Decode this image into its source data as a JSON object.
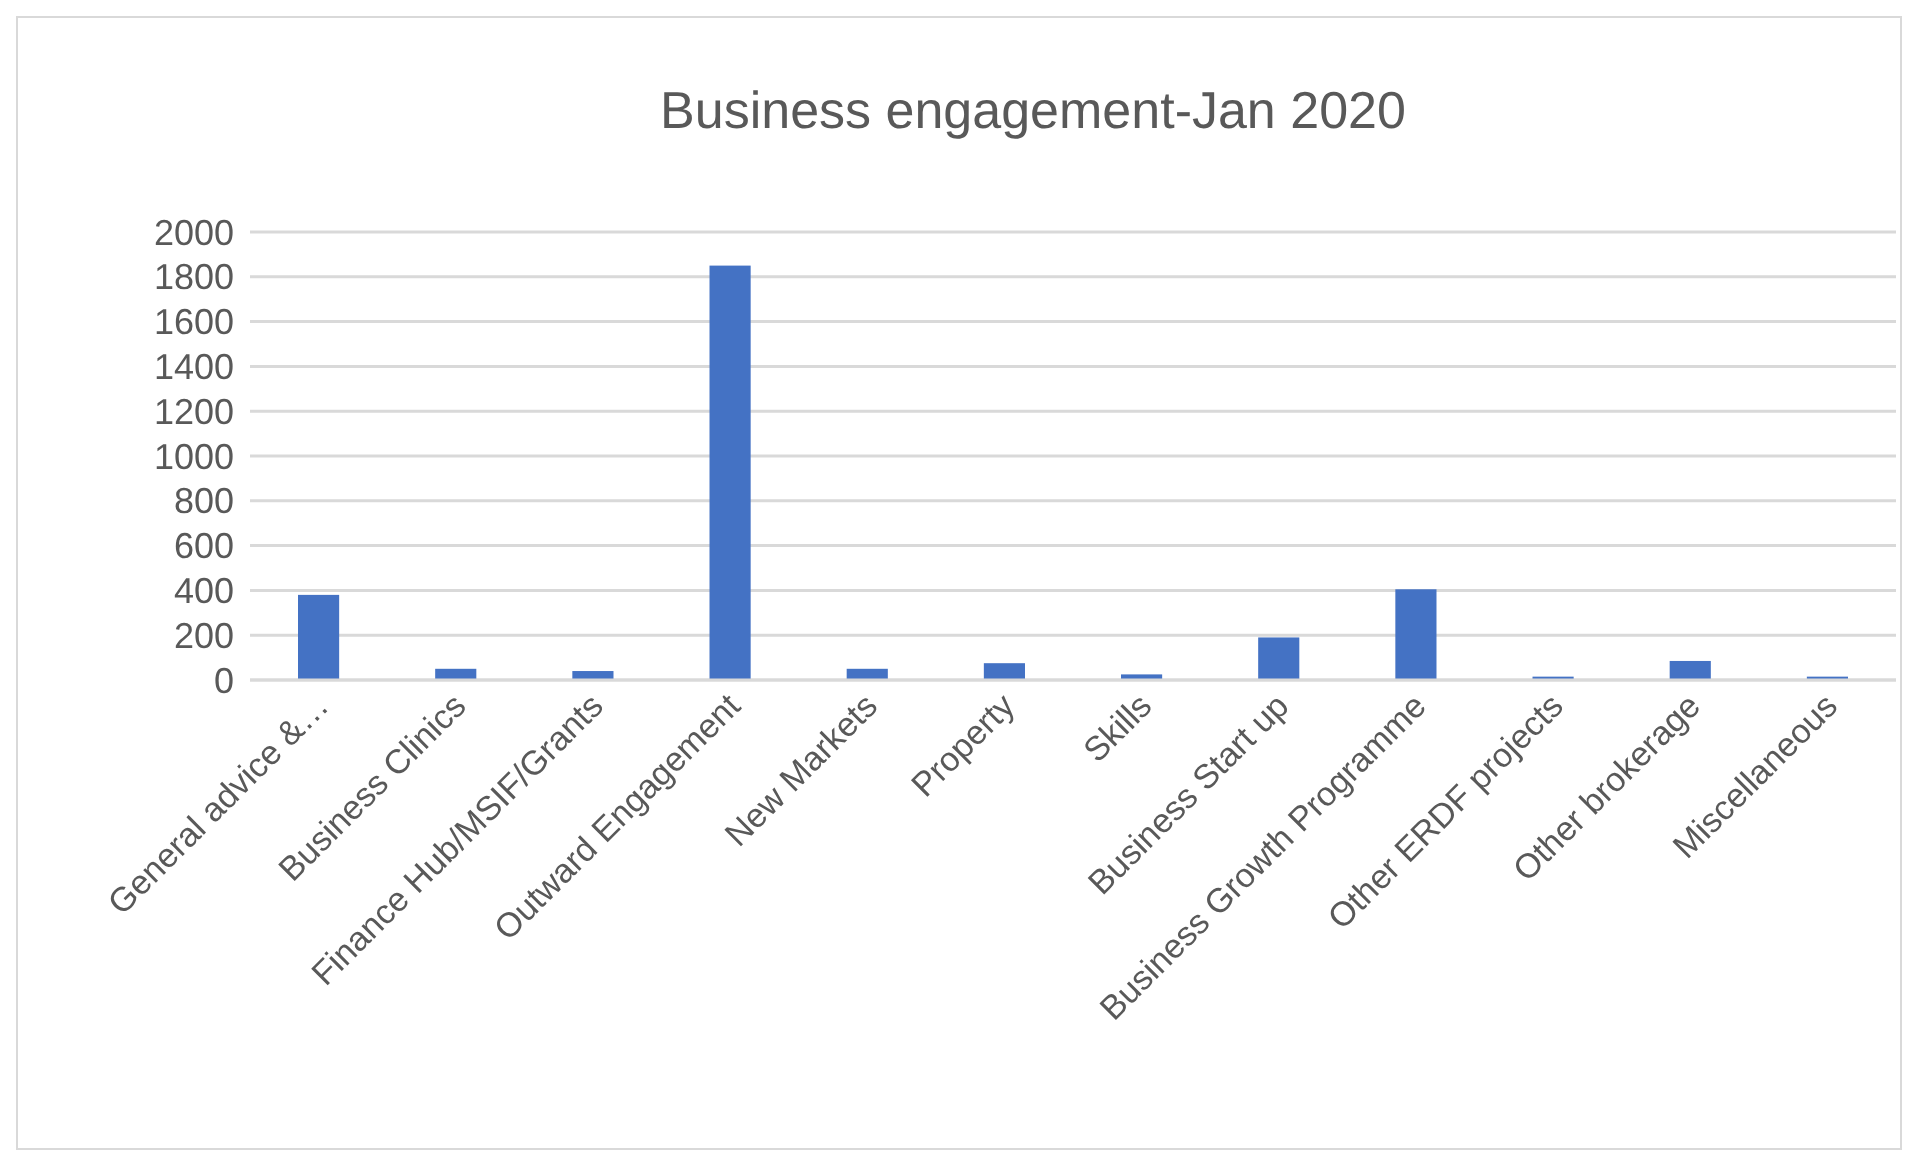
{
  "chart_data": {
    "type": "bar",
    "title": "Business engagement-Jan 2020",
    "categories": [
      "General advice &…",
      "Business Clinics",
      "Finance Hub/MSIF/Grants",
      "Outward Engagement",
      "New Markets",
      "Property",
      "Skills",
      "Business Start up",
      "Business Growth Programme",
      "Other ERDF projects",
      "Other brokerage",
      "Miscellaneous"
    ],
    "values": [
      380,
      50,
      40,
      1850,
      50,
      75,
      25,
      190,
      405,
      15,
      85,
      15
    ],
    "color": "#4472c4",
    "ylim": [
      0,
      2000
    ],
    "yticks": [
      0,
      200,
      400,
      600,
      800,
      1000,
      1200,
      1400,
      1600,
      1800,
      2000
    ],
    "grid": true
  }
}
